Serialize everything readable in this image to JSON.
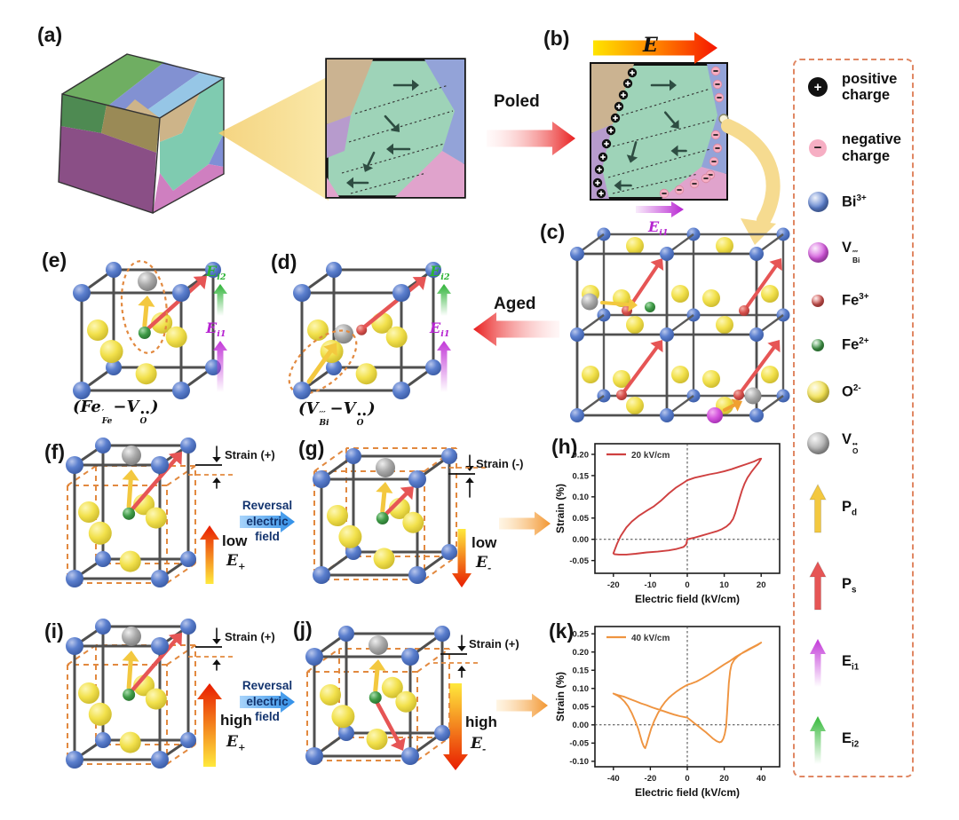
{
  "panel_labels": {
    "a": "(a)",
    "b": "(b)",
    "c": "(c)",
    "d": "(d)",
    "e": "(e)",
    "f": "(f)",
    "g": "(g)",
    "h": "(h)",
    "i": "(i)",
    "j": "(j)",
    "k": "(k)"
  },
  "annotations": {
    "poled": "Poled",
    "aged": "Aged",
    "field_E": "E",
    "ei1_b": {
      "main": "E",
      "sub": "i1"
    },
    "reversal_lines": [
      "Reversal",
      "electric",
      "field"
    ],
    "strain_f": "Strain (+)",
    "strain_g": "Strain (-)",
    "strain_i": "Strain (+)",
    "strain_j": "Strain (+)",
    "low": "low",
    "high": "high",
    "e_plus": {
      "main": "E",
      "sub": "+"
    },
    "e_minus": {
      "main": "E",
      "sub": "-"
    }
  },
  "formulas": {
    "e": {
      "open": "(",
      "m1": "Fe",
      "sup1": "′",
      "sub1": "Fe",
      "dash": "−",
      "m2": "V",
      "sup2": "••",
      "sub2": "O",
      "close": ")"
    },
    "d": {
      "open": "(",
      "m1": "V",
      "sup1": "′′′",
      "sub1": "Bi",
      "dash": "−",
      "m2": "V",
      "sup2": "••",
      "sub2": "O",
      "close": ")"
    }
  },
  "cell_axis_labels": {
    "ei2": {
      "main": "E",
      "sub": "i2"
    },
    "ei1": {
      "main": "E",
      "sub": "i1"
    }
  },
  "legend": {
    "items": [
      {
        "icon": "pos-charge",
        "glyph": "+",
        "lines": [
          "positive",
          "charge"
        ]
      },
      {
        "icon": "neg-charge",
        "glyph": "−",
        "lines": [
          "negative",
          "charge"
        ]
      },
      {
        "icon": "sphere",
        "color": "#5b7fce",
        "size": 23,
        "main": "Bi",
        "sup": "3+",
        "sub": ""
      },
      {
        "icon": "sphere",
        "color": "#d455dd",
        "size": 23,
        "main": "V",
        "sup": "′′′",
        "sub": "Bi"
      },
      {
        "icon": "sphere",
        "color": "#d9534f",
        "size": 14,
        "main": "Fe",
        "sup": "3+",
        "sub": ""
      },
      {
        "icon": "sphere",
        "color": "#3f9b47",
        "size": 14,
        "main": "Fe",
        "sup": "2+",
        "sub": ""
      },
      {
        "icon": "sphere",
        "color": "#f2e14c",
        "size": 25,
        "main": "O",
        "sup": "2-",
        "sub": ""
      },
      {
        "icon": "sphere",
        "color": "#a9a9a9",
        "size": 25,
        "main": "V",
        "sup": "••",
        "sub": "O"
      },
      {
        "icon": "arrow",
        "color": "#f3c83f",
        "main": "P",
        "sup": "",
        "sub": "d"
      },
      {
        "icon": "arrow",
        "color": "#e65555",
        "main": "P",
        "sup": "",
        "sub": "s"
      },
      {
        "icon": "arrow-fade",
        "color": "#c238d8",
        "main": "E",
        "sup": "",
        "sub": "i1"
      },
      {
        "icon": "arrow-fade",
        "color": "#35b93a",
        "main": "E",
        "sup": "",
        "sub": "i2"
      }
    ]
  },
  "colors": {
    "bi": "#5b7fce",
    "o": "#f2e14c",
    "vo": "#a9a9a9",
    "fe3": "#d9534f",
    "fe2": "#3f9b47",
    "vbi": "#d455dd",
    "pd": "#f3c83f",
    "ps": "#e65555",
    "ei1": "#c238d8",
    "ei2": "#35b93a",
    "legend_border": "#e08763",
    "dash_accent": "#e2893f",
    "curve_h": "#cf4040",
    "curve_k": "#ef9440",
    "blue_arrow": "#4da3f7",
    "red_arrow": "#e82020"
  },
  "chart_data": [
    {
      "id": "h",
      "type": "line",
      "legend": "20 kV/cm",
      "color": "#cf4040",
      "xlabel": "Electric field (kV/cm)",
      "ylabel": "Strain (%)",
      "xlim": [
        -25,
        25
      ],
      "ylim": [
        -0.08,
        0.225
      ],
      "xticks": [
        -20,
        -10,
        0,
        10,
        20
      ],
      "yticks": [
        -0.05,
        0.0,
        0.05,
        0.1,
        0.15,
        0.2
      ],
      "zero_lines": true,
      "points": [
        [
          -20,
          -0.033
        ],
        [
          -19,
          -0.01
        ],
        [
          -18,
          0.008
        ],
        [
          -16.5,
          0.028
        ],
        [
          -15,
          0.042
        ],
        [
          -13,
          0.056
        ],
        [
          -11,
          0.067
        ],
        [
          -9,
          0.078
        ],
        [
          -7,
          0.092
        ],
        [
          -5,
          0.108
        ],
        [
          -3,
          0.122
        ],
        [
          -1,
          0.133
        ],
        [
          0,
          0.139
        ],
        [
          2,
          0.145
        ],
        [
          4,
          0.149
        ],
        [
          6,
          0.153
        ],
        [
          8,
          0.156
        ],
        [
          10,
          0.16
        ],
        [
          12,
          0.165
        ],
        [
          14,
          0.171
        ],
        [
          16,
          0.177
        ],
        [
          18,
          0.183
        ],
        [
          19.5,
          0.189
        ],
        [
          20,
          0.19
        ],
        [
          19.3,
          0.18
        ],
        [
          18.3,
          0.169
        ],
        [
          17.3,
          0.158
        ],
        [
          16.3,
          0.145
        ],
        [
          15.5,
          0.131
        ],
        [
          14.8,
          0.115
        ],
        [
          14.2,
          0.098
        ],
        [
          13.6,
          0.08
        ],
        [
          13,
          0.062
        ],
        [
          12.4,
          0.048
        ],
        [
          11.6,
          0.038
        ],
        [
          10.6,
          0.03
        ],
        [
          9.4,
          0.024
        ],
        [
          8,
          0.019
        ],
        [
          6,
          0.014
        ],
        [
          4,
          0.009
        ],
        [
          2,
          0.004
        ],
        [
          0.5,
          0.001
        ],
        [
          0,
          0
        ],
        [
          -0.3,
          -0.012
        ],
        [
          -1,
          -0.018
        ],
        [
          -3,
          -0.023
        ],
        [
          -5,
          -0.026
        ],
        [
          -8,
          -0.029
        ],
        [
          -11,
          -0.031
        ],
        [
          -14,
          -0.034
        ],
        [
          -16.5,
          -0.036
        ],
        [
          -18.5,
          -0.036
        ],
        [
          -19.7,
          -0.035
        ],
        [
          -20,
          -0.033
        ]
      ]
    },
    {
      "id": "k",
      "type": "line",
      "legend": "40 kV/cm",
      "color": "#ef9440",
      "xlabel": "Electric field (kV/cm)",
      "ylabel": "Strain (%)",
      "xlim": [
        -50,
        50
      ],
      "ylim": [
        -0.115,
        0.27
      ],
      "xticks": [
        -40,
        -20,
        0,
        20,
        40
      ],
      "yticks": [
        -0.1,
        -0.05,
        0.0,
        0.05,
        0.1,
        0.15,
        0.2,
        0.25
      ],
      "zero_lines": true,
      "points": [
        [
          0,
          0.02
        ],
        [
          2,
          0.012
        ],
        [
          4,
          0.004
        ],
        [
          6,
          -0.004
        ],
        [
          8,
          -0.012
        ],
        [
          10,
          -0.02
        ],
        [
          12,
          -0.029
        ],
        [
          14,
          -0.038
        ],
        [
          16,
          -0.045
        ],
        [
          17.5,
          -0.048
        ],
        [
          18.5,
          -0.046
        ],
        [
          19.5,
          -0.038
        ],
        [
          20.3,
          -0.025
        ],
        [
          21,
          -0.005
        ],
        [
          21.5,
          0.03
        ],
        [
          22,
          0.075
        ],
        [
          22.5,
          0.115
        ],
        [
          23.2,
          0.148
        ],
        [
          24,
          0.166
        ],
        [
          25.5,
          0.179
        ],
        [
          27.5,
          0.189
        ],
        [
          30,
          0.198
        ],
        [
          33,
          0.207
        ],
        [
          36,
          0.215
        ],
        [
          38,
          0.22
        ],
        [
          40,
          0.226
        ],
        [
          38,
          0.219
        ],
        [
          35,
          0.211
        ],
        [
          32,
          0.203
        ],
        [
          29,
          0.195
        ],
        [
          26,
          0.186
        ],
        [
          23,
          0.175
        ],
        [
          20,
          0.166
        ],
        [
          17,
          0.156
        ],
        [
          14,
          0.146
        ],
        [
          11,
          0.136
        ],
        [
          8,
          0.127
        ],
        [
          5,
          0.119
        ],
        [
          2,
          0.113
        ],
        [
          0,
          0.11
        ],
        [
          -2,
          0.104
        ],
        [
          -4,
          0.098
        ],
        [
          -6,
          0.091
        ],
        [
          -8,
          0.083
        ],
        [
          -10,
          0.074
        ],
        [
          -12,
          0.063
        ],
        [
          -14,
          0.049
        ],
        [
          -16,
          0.031
        ],
        [
          -18,
          0.01
        ],
        [
          -19.5,
          -0.01
        ],
        [
          -21,
          -0.035
        ],
        [
          -22,
          -0.053
        ],
        [
          -22.8,
          -0.064
        ],
        [
          -23.5,
          -0.06
        ],
        [
          -24.5,
          -0.047
        ],
        [
          -25.5,
          -0.03
        ],
        [
          -26.5,
          -0.012
        ],
        [
          -28,
          0.008
        ],
        [
          -30,
          0.032
        ],
        [
          -32,
          0.051
        ],
        [
          -34,
          0.064
        ],
        [
          -36,
          0.074
        ],
        [
          -38,
          0.081
        ],
        [
          -40,
          0.086
        ],
        [
          -37,
          0.081
        ],
        [
          -34,
          0.077
        ],
        [
          -31,
          0.071
        ],
        [
          -28,
          0.065
        ],
        [
          -25,
          0.059
        ],
        [
          -22,
          0.054
        ],
        [
          -19,
          0.048
        ],
        [
          -16,
          0.043
        ],
        [
          -13,
          0.038
        ],
        [
          -10,
          0.033
        ],
        [
          -7,
          0.028
        ],
        [
          -4,
          0.024
        ],
        [
          -1,
          0.021
        ],
        [
          0,
          0.02
        ]
      ]
    }
  ]
}
